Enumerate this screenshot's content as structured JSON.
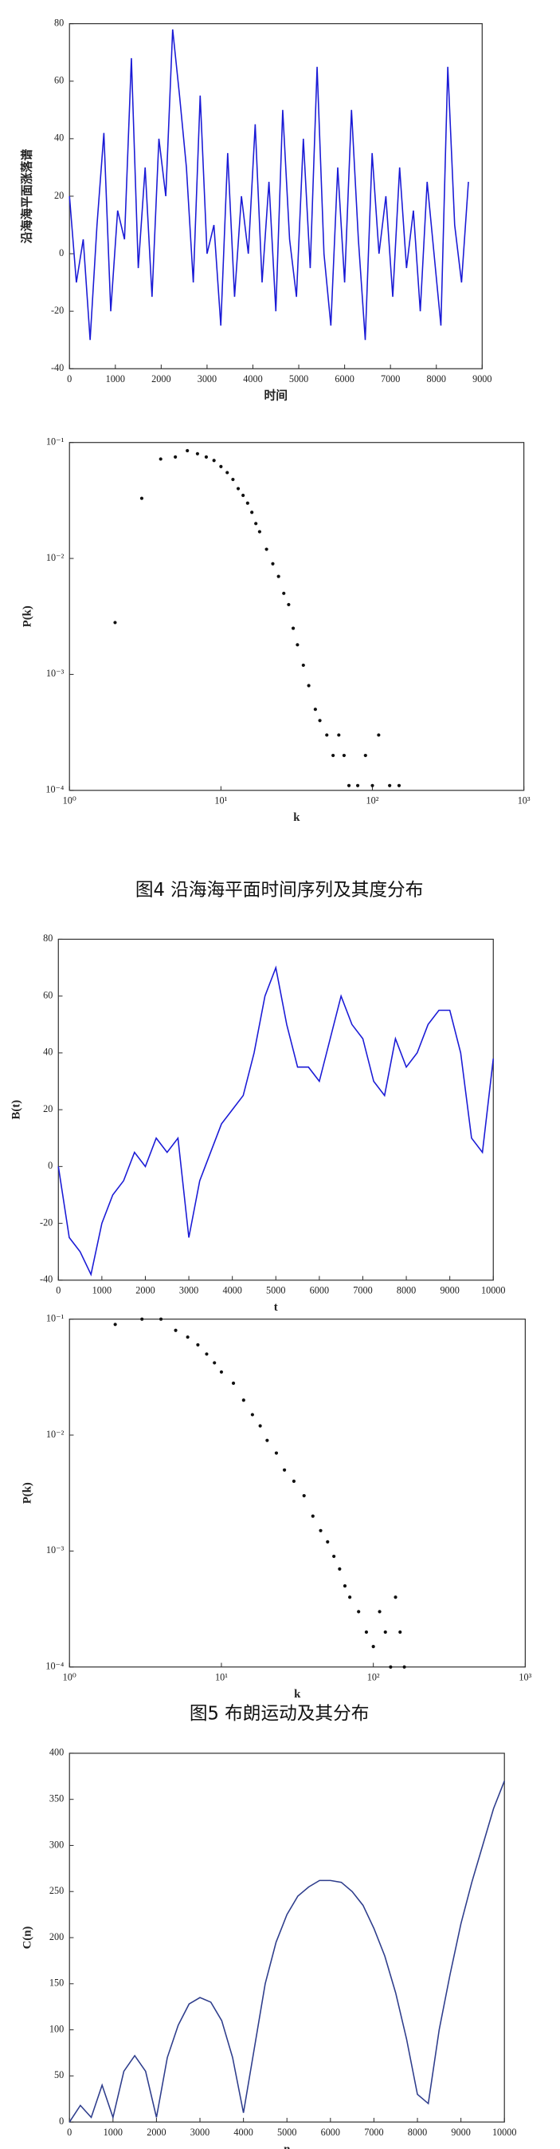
{
  "chart_data": [
    {
      "type": "line",
      "ylabel": "沿海海平面涨落谱",
      "xlabel": "时间",
      "color": "#1a1ad6",
      "x": [
        0,
        150,
        300,
        450,
        600,
        750,
        900,
        1050,
        1200,
        1350,
        1500,
        1650,
        1800,
        1950,
        2100,
        2250,
        2400,
        2550,
        2700,
        2850,
        3000,
        3150,
        3300,
        3450,
        3600,
        3750,
        3900,
        4050,
        4200,
        4350,
        4500,
        4650,
        4800,
        4950,
        5100,
        5250,
        5400,
        5550,
        5700,
        5850,
        6000,
        6150,
        6300,
        6450,
        6600,
        6750,
        6900,
        7050,
        7200,
        7350,
        7500,
        7650,
        7800,
        7950,
        8100,
        8250,
        8400,
        8550,
        8700
      ],
      "values": [
        20,
        -10,
        5,
        -30,
        10,
        42,
        -20,
        15,
        5,
        68,
        -5,
        30,
        -15,
        40,
        20,
        78,
        55,
        30,
        -10,
        55,
        0,
        10,
        -25,
        35,
        -15,
        20,
        0,
        45,
        -10,
        25,
        -20,
        50,
        5,
        -15,
        40,
        -5,
        65,
        0,
        -25,
        30,
        -10,
        50,
        5,
        -30,
        35,
        0,
        20,
        -15,
        30,
        -5,
        15,
        -20,
        25,
        0,
        -25,
        65,
        10,
        -10,
        25
      ],
      "xlim": [
        0,
        9000
      ],
      "xticks": [
        0,
        1000,
        2000,
        3000,
        4000,
        5000,
        6000,
        7000,
        8000,
        9000
      ],
      "ylim": [
        -40,
        80
      ],
      "yticks": [
        -40,
        -20,
        0,
        20,
        40,
        60,
        80
      ]
    },
    {
      "type": "scatter",
      "ylabel": "P(k)",
      "xlabel": "k",
      "color": "#111111",
      "xlog": true,
      "ylog": true,
      "x": [
        2,
        3,
        4,
        5,
        6,
        7,
        8,
        9,
        10,
        11,
        12,
        13,
        14,
        15,
        16,
        17,
        18,
        20,
        22,
        24,
        26,
        28,
        30,
        32,
        35,
        38,
        42,
        45,
        50,
        55,
        60,
        65,
        70,
        80,
        90,
        100,
        110,
        130,
        150
      ],
      "values": [
        0.0028,
        0.033,
        0.072,
        0.075,
        0.085,
        0.08,
        0.075,
        0.07,
        0.062,
        0.055,
        0.048,
        0.04,
        0.035,
        0.03,
        0.025,
        0.02,
        0.017,
        0.012,
        0.009,
        0.007,
        0.005,
        0.004,
        0.0025,
        0.0018,
        0.0012,
        0.0008,
        0.0005,
        0.0004,
        0.0003,
        0.0002,
        0.0003,
        0.0002,
        0.00011,
        0.00011,
        0.0002,
        0.00011,
        0.0003,
        0.00011,
        0.00011
      ],
      "xlim": [
        1,
        1000
      ],
      "xticks": [
        {
          "value": 1,
          "label": "10⁰"
        },
        {
          "value": 10,
          "label": "10¹"
        },
        {
          "value": 100,
          "label": "10²"
        },
        {
          "value": 1000,
          "label": "10³"
        }
      ],
      "ylim": [
        0.0001,
        0.1
      ],
      "yticks": [
        {
          "value": 0.0001,
          "label": "10⁻⁴"
        },
        {
          "value": 0.001,
          "label": "10⁻³"
        },
        {
          "value": 0.01,
          "label": "10⁻²"
        },
        {
          "value": 0.1,
          "label": "10⁻¹"
        }
      ]
    },
    {
      "type": "line",
      "ylabel": "B(t)",
      "xlabel": "t",
      "color": "#1a1ad6",
      "x": [
        0,
        250,
        500,
        750,
        1000,
        1250,
        1500,
        1750,
        2000,
        2250,
        2500,
        2750,
        3000,
        3250,
        3500,
        3750,
        4000,
        4250,
        4500,
        4750,
        5000,
        5250,
        5500,
        5750,
        6000,
        6250,
        6500,
        6750,
        7000,
        7250,
        7500,
        7750,
        8000,
        8250,
        8500,
        8750,
        9000,
        9250,
        9500,
        9750,
        10000
      ],
      "values": [
        0,
        -25,
        -30,
        -38,
        -20,
        -10,
        -5,
        5,
        0,
        10,
        5,
        10,
        -25,
        -5,
        5,
        15,
        20,
        25,
        40,
        60,
        70,
        50,
        35,
        35,
        30,
        45,
        60,
        50,
        45,
        30,
        25,
        45,
        35,
        40,
        50,
        55,
        55,
        40,
        10,
        5,
        38
      ],
      "xlim": [
        0,
        10000
      ],
      "xticks": [
        0,
        1000,
        2000,
        3000,
        4000,
        5000,
        6000,
        7000,
        8000,
        9000,
        10000
      ],
      "ylim": [
        -40,
        80
      ],
      "yticks": [
        -40,
        -20,
        0,
        20,
        40,
        60,
        80
      ]
    },
    {
      "type": "scatter",
      "ylabel": "P(k)",
      "xlabel": "k",
      "color": "#111111",
      "xlog": true,
      "ylog": true,
      "x": [
        2,
        3,
        4,
        5,
        6,
        7,
        8,
        9,
        10,
        12,
        14,
        16,
        18,
        20,
        23,
        26,
        30,
        35,
        40,
        45,
        50,
        55,
        60,
        65,
        70,
        80,
        90,
        100,
        110,
        120,
        130,
        140,
        150,
        160
      ],
      "values": [
        0.09,
        0.1,
        0.1,
        0.08,
        0.07,
        0.06,
        0.05,
        0.042,
        0.035,
        0.028,
        0.02,
        0.015,
        0.012,
        0.009,
        0.007,
        0.005,
        0.004,
        0.003,
        0.002,
        0.0015,
        0.0012,
        0.0009,
        0.0007,
        0.0005,
        0.0004,
        0.0003,
        0.0002,
        0.00015,
        0.0003,
        0.0002,
        0.0001,
        0.0004,
        0.0002,
        0.0001
      ],
      "xlim": [
        1,
        1000
      ],
      "xticks": [
        {
          "value": 1,
          "label": "10⁰"
        },
        {
          "value": 10,
          "label": "10¹"
        },
        {
          "value": 100,
          "label": "10²"
        },
        {
          "value": 1000,
          "label": "10³"
        }
      ],
      "ylim": [
        0.0001,
        0.1
      ],
      "yticks": [
        {
          "value": 0.0001,
          "label": "10⁻⁴"
        },
        {
          "value": 0.001,
          "label": "10⁻³"
        },
        {
          "value": 0.01,
          "label": "10⁻²"
        },
        {
          "value": 0.1,
          "label": "10⁻¹"
        }
      ]
    },
    {
      "type": "line",
      "ylabel": "C(n)",
      "xlabel": "n",
      "color": "#2e3d8c",
      "x": [
        0,
        250,
        500,
        750,
        1000,
        1250,
        1500,
        1750,
        2000,
        2250,
        2500,
        2750,
        3000,
        3250,
        3500,
        3750,
        4000,
        4250,
        4500,
        4750,
        5000,
        5250,
        5500,
        5750,
        6000,
        6250,
        6500,
        6750,
        7000,
        7250,
        7500,
        7750,
        8000,
        8250,
        8500,
        8750,
        9000,
        9250,
        9500,
        9750,
        10000
      ],
      "values": [
        0,
        18,
        5,
        40,
        5,
        55,
        72,
        55,
        5,
        70,
        105,
        128,
        135,
        130,
        110,
        70,
        10,
        80,
        150,
        195,
        225,
        245,
        255,
        262,
        262,
        260,
        250,
        235,
        210,
        180,
        140,
        90,
        30,
        20,
        100,
        160,
        215,
        260,
        300,
        340,
        370
      ],
      "xlim": [
        0,
        10000
      ],
      "xticks": [
        0,
        1000,
        2000,
        3000,
        4000,
        5000,
        6000,
        7000,
        8000,
        9000,
        10000
      ],
      "ylim": [
        0,
        400
      ],
      "yticks": [
        0,
        50,
        100,
        150,
        200,
        250,
        300,
        350,
        400
      ]
    }
  ],
  "captions": [
    "图4  沿海海平面时间序列及其度分布",
    "图5  布朗运动及其分布"
  ]
}
